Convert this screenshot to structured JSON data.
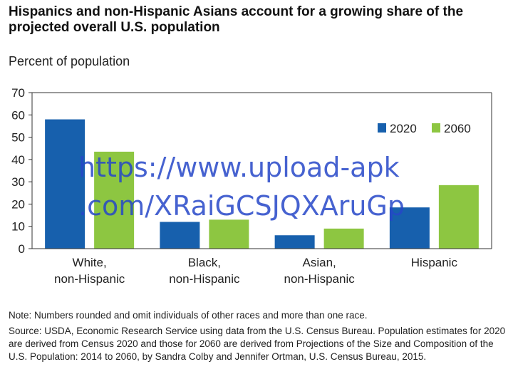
{
  "title": "Hispanics and non-Hispanic Asians account for a growing share of the projected overall U.S. population",
  "watermark": {
    "line1": "https://www.upload-apk",
    "line2": ".com/XRaiGCSJQXAruGp"
  },
  "colors": {
    "s2020": "#1760ad",
    "s2060": "#8dc641",
    "axis": "#333333",
    "text": "#222222"
  },
  "notes": {
    "note": "Note: Numbers rounded and omit individuals of other races and more than one race.",
    "source": "Source: USDA, Economic Research Service using data from the U.S. Census Bureau. Population estimates for 2020 are derived from Census 2020 and those for 2060 are derived from Projections of the Size and Composition of the U.S. Population: 2014 to 2060, by Sandra Colby and Jennifer Ortman, U.S. Census Bureau, 2015."
  },
  "chart_data": {
    "type": "bar",
    "title": "Hispanics and non-Hispanic Asians account for a growing share of the projected overall U.S. population",
    "ylabel": "Percent of population",
    "ylim": [
      0,
      70
    ],
    "yticks": [
      0,
      10,
      20,
      30,
      40,
      50,
      60,
      70
    ],
    "categories": [
      [
        "White,",
        "non-Hispanic"
      ],
      [
        "Black,",
        "non-Hispanic"
      ],
      [
        "Asian,",
        "non-Hispanic"
      ],
      [
        "Hispanic"
      ]
    ],
    "series": [
      {
        "name": "2020",
        "values": [
          58,
          12,
          6,
          18.5
        ]
      },
      {
        "name": "2060",
        "values": [
          43.5,
          13,
          9,
          28.5
        ]
      }
    ],
    "legend": "top-right",
    "grid": false
  }
}
